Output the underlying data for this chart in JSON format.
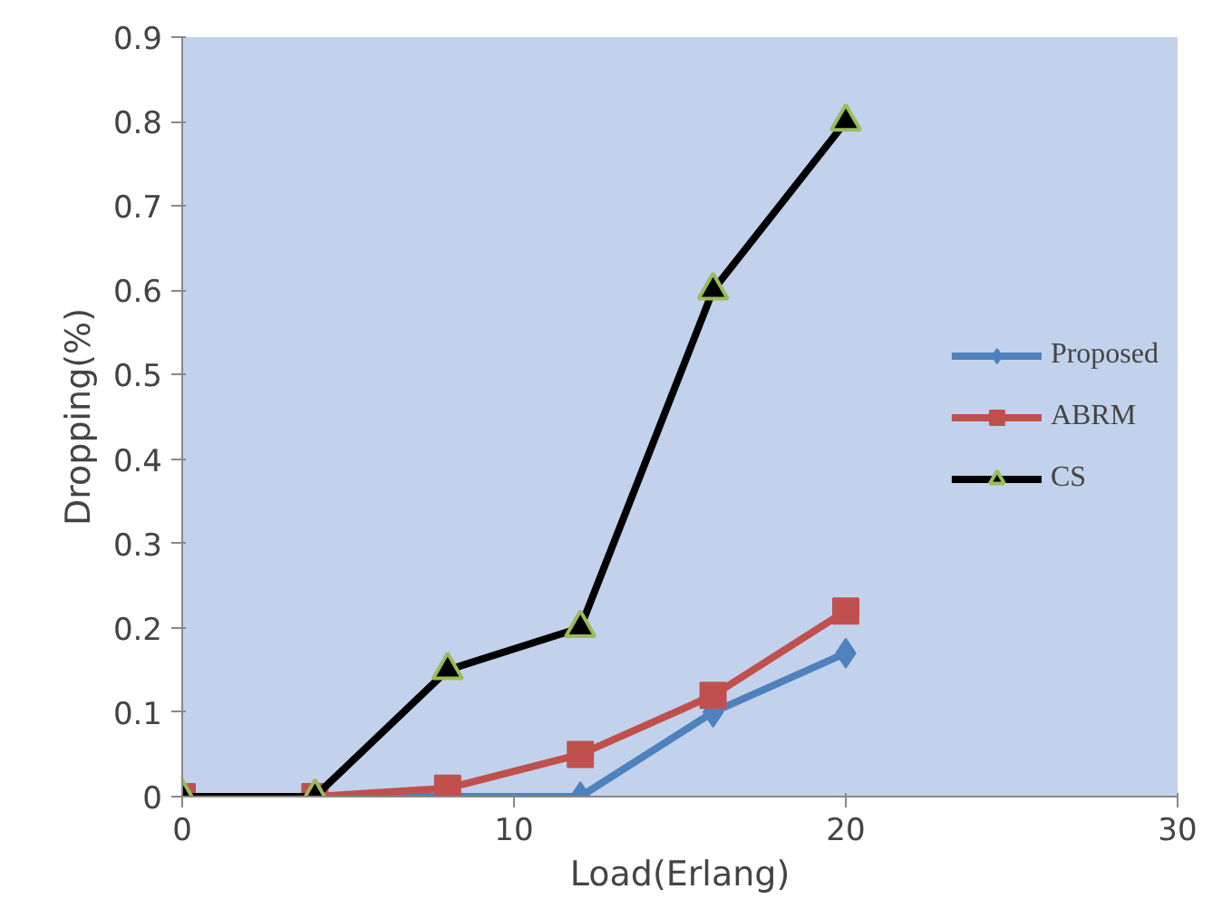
{
  "chart_data": {
    "type": "line",
    "xlabel": "Load(Erlang)",
    "ylabel": "Dropping(%)",
    "x": [
      0,
      4,
      8,
      12,
      16,
      20
    ],
    "series": [
      {
        "name": "Proposed",
        "color": "#4f81bd",
        "marker": "diamond",
        "values": [
          0,
          0,
          0,
          0,
          0.1,
          0.17
        ]
      },
      {
        "name": "ABRM",
        "color": "#c0504d",
        "marker": "square",
        "values": [
          0,
          0,
          0.01,
          0.05,
          0.12,
          0.22
        ]
      },
      {
        "name": "CS",
        "color": "#000000",
        "marker": "triangle",
        "values": [
          0,
          0,
          0.15,
          0.2,
          0.6,
          0.8
        ]
      }
    ],
    "xlim": [
      0,
      30
    ],
    "ylim": [
      0,
      0.9
    ],
    "xticks": [
      0,
      10,
      20,
      30
    ],
    "yticks": [
      0,
      0.1,
      0.2,
      0.3,
      0.4,
      0.5,
      0.6,
      0.7,
      0.8,
      0.9
    ],
    "grid": false,
    "legend": "right",
    "line_style": "solid"
  }
}
